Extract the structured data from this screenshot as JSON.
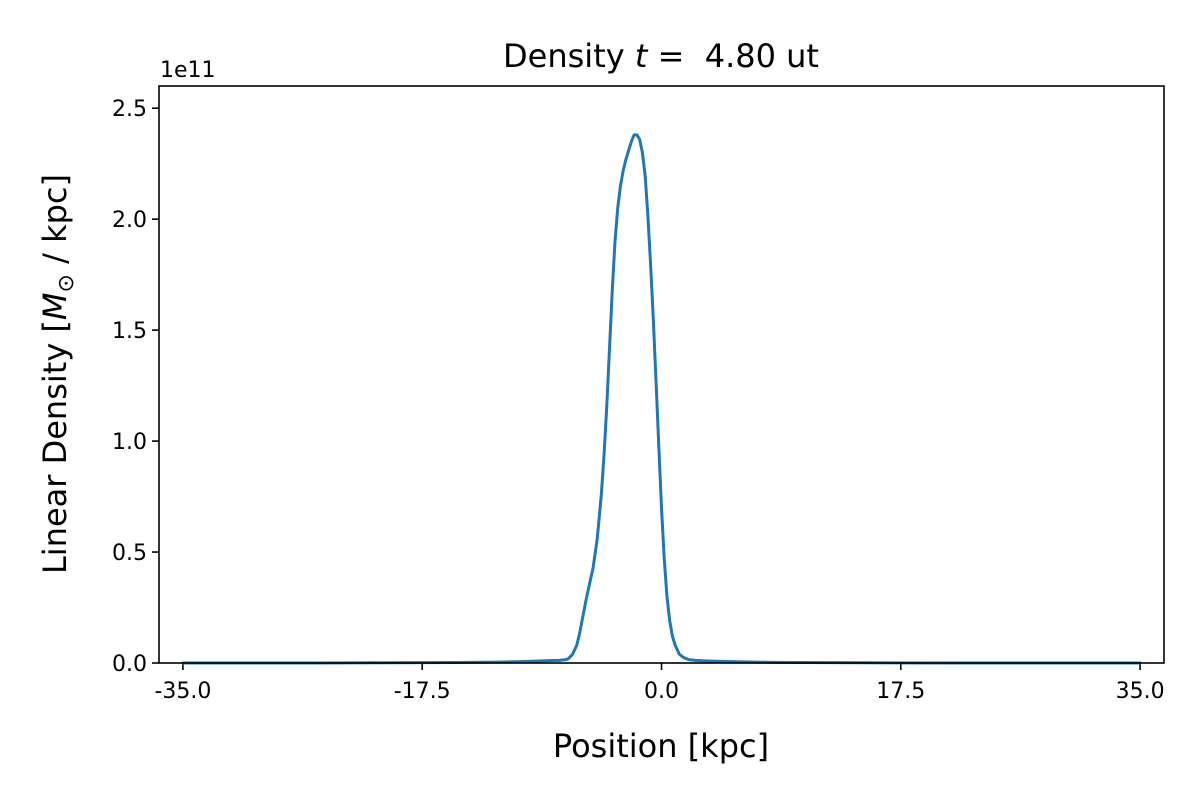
{
  "chart_data": {
    "type": "line",
    "title_prefix": "Density ",
    "title_var": "t",
    "title_suffix": " =  4.80 ut",
    "xlabel": "Position [kpc]",
    "ylabel_prefix": "Linear Density [",
    "ylabel_var": "M",
    "ylabel_sub": "⊙",
    "ylabel_suffix": " / kpc]",
    "y_offset_text": "1e11",
    "y_multiplier": 100000000000.0,
    "xlim": [
      -36.75,
      36.75
    ],
    "ylim": [
      0,
      2.6
    ],
    "x_ticks": [
      -35.0,
      -17.5,
      0.0,
      17.5,
      35.0
    ],
    "x_tick_labels": [
      "-35.0",
      "-17.5",
      "0.0",
      "17.5",
      "35.0"
    ],
    "y_ticks": [
      0.0,
      0.5,
      1.0,
      1.5,
      2.0,
      2.5
    ],
    "y_tick_labels": [
      "0.0",
      "0.5",
      "1.0",
      "1.5",
      "2.0",
      "2.5"
    ],
    "grid": false,
    "line_color": "#1f77b4",
    "series": [
      {
        "x": [
          -35.0,
          -30.0,
          -25.0,
          -20.0,
          -15.0,
          -12.0,
          -10.0,
          -9.0,
          -8.0,
          -7.5,
          -7.0,
          -6.8,
          -6.5,
          -6.2,
          -6.0,
          -5.5,
          -5.0,
          -4.7,
          -4.4,
          -4.2,
          -4.0,
          -3.8,
          -3.6,
          -3.4,
          -3.2,
          -3.0,
          -2.8,
          -2.6,
          -2.4,
          -2.2,
          -2.0,
          -1.8,
          -1.6,
          -1.4,
          -1.2,
          -1.0,
          -0.8,
          -0.6,
          -0.4,
          -0.2,
          0.0,
          0.2,
          0.4,
          0.6,
          0.8,
          1.0,
          1.3,
          1.6,
          2.0,
          2.5,
          3.0,
          4.0,
          6.0,
          8.0,
          10.0,
          15.0,
          20.0,
          25.0,
          30.0,
          35.0
        ],
        "y": [
          0.0,
          0.0,
          0.0,
          0.001,
          0.002,
          0.004,
          0.007,
          0.009,
          0.011,
          0.012,
          0.015,
          0.02,
          0.04,
          0.08,
          0.13,
          0.29,
          0.43,
          0.56,
          0.76,
          0.94,
          1.16,
          1.42,
          1.68,
          1.9,
          2.05,
          2.15,
          2.22,
          2.27,
          2.31,
          2.35,
          2.38,
          2.38,
          2.36,
          2.3,
          2.2,
          2.02,
          1.8,
          1.55,
          1.27,
          0.98,
          0.7,
          0.47,
          0.3,
          0.19,
          0.12,
          0.08,
          0.04,
          0.025,
          0.015,
          0.012,
          0.01,
          0.008,
          0.005,
          0.003,
          0.002,
          0.001,
          0.0,
          0.0,
          0.0,
          0.0
        ]
      }
    ]
  }
}
